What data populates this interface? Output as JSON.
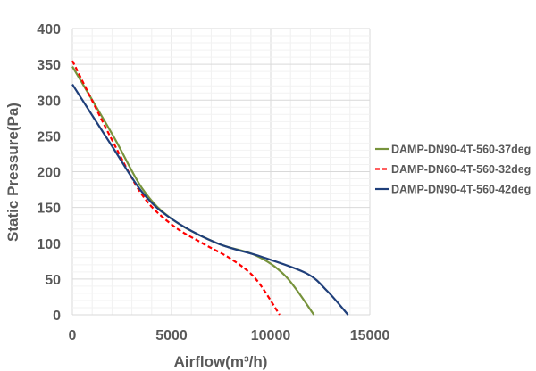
{
  "chart_data": {
    "type": "line",
    "title": "",
    "xlabel": "Airflow(m³/h)",
    "ylabel": "Static Pressure(Pa)",
    "xlim": [
      0,
      15000
    ],
    "ylim": [
      0,
      400
    ],
    "xticks": [
      "0",
      "5000",
      "10000",
      "15000"
    ],
    "yticks": [
      "0",
      "50",
      "100",
      "150",
      "200",
      "250",
      "300",
      "350",
      "400"
    ],
    "grid": true,
    "legend_position": "right",
    "series": [
      {
        "name": "DAMP-DN90-4T-560-37deg",
        "color": "#77933C",
        "style": "solid",
        "x": [
          0,
          2060,
          3560,
          5060,
          7300,
          9250,
          10750,
          12180
        ],
        "y": [
          347,
          250,
          175,
          133,
          100,
          83,
          54,
          0
        ]
      },
      {
        "name": "DAMP-DN60-4T-560-32deg",
        "color": "#FF0000",
        "style": "dashed",
        "x": [
          0,
          2060,
          3560,
          5060,
          6560,
          8060,
          9250,
          10450
        ],
        "y": [
          355,
          241,
          166,
          125,
          100,
          77,
          50,
          0
        ]
      },
      {
        "name": "DAMP-DN90-4T-560-42deg",
        "color": "#1F3F7A",
        "style": "solid",
        "x": [
          0,
          2060,
          3560,
          5060,
          7300,
          9550,
          11800,
          12860,
          13900
        ],
        "y": [
          322,
          233,
          170,
          133,
          100,
          81,
          58,
          33,
          0
        ]
      }
    ]
  }
}
